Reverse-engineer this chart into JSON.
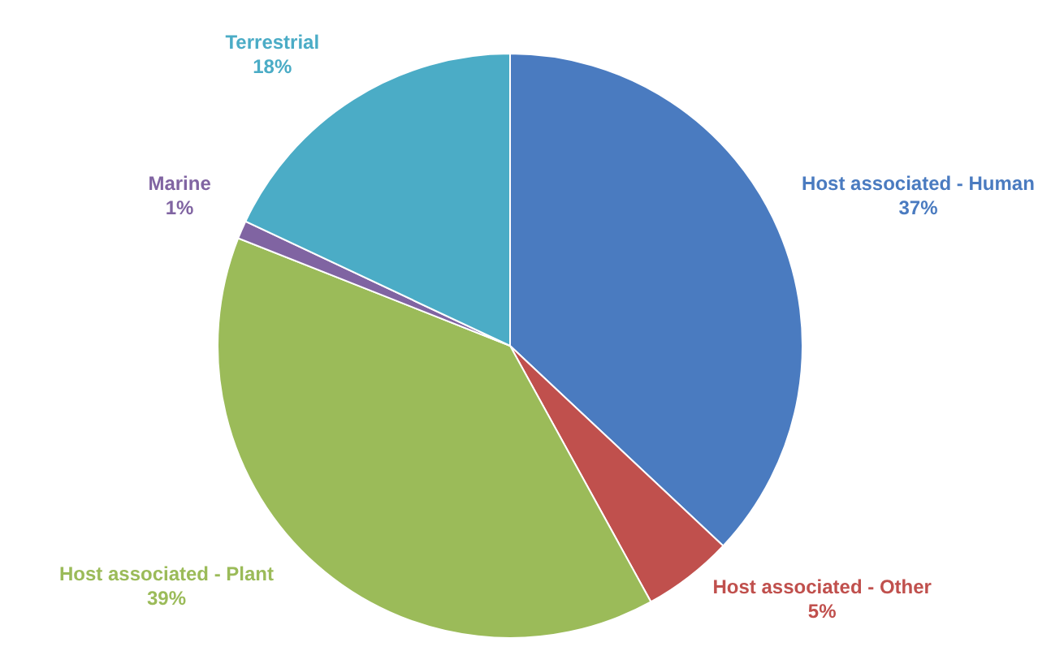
{
  "chart_data": {
    "type": "pie",
    "categories": [
      "Host associated - Human",
      "Host associated - Other",
      "Host associated - Plant",
      "Marine",
      "Terrestrial"
    ],
    "values": [
      37,
      5,
      39,
      1,
      18
    ],
    "value_labels": [
      "37%",
      "5%",
      "39%",
      "1%",
      "18%"
    ],
    "colors": [
      "#4a7bc0",
      "#c0504d",
      "#9bbb59",
      "#8064a2",
      "#4bacc6"
    ],
    "legend": false
  }
}
